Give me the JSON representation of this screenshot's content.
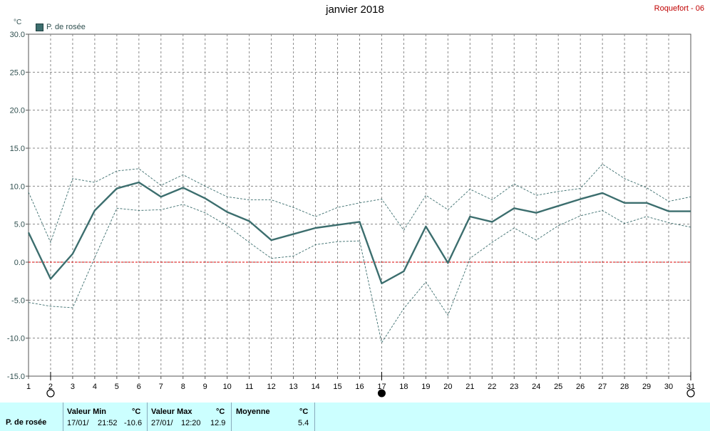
{
  "title": "janvier 2018",
  "station": "Roquefort - 06",
  "unit": "°C",
  "colors": {
    "series": "#3c6e6e",
    "envelope": "#3c6e6e",
    "zero_line": "#dd0000",
    "grid": "#888888",
    "stats_bg": "#ccffff"
  },
  "icons": [
    "full-moon-icon",
    "new-moon-icon"
  ],
  "chart_data": {
    "type": "line",
    "title": "janvier 2018",
    "ylabel": "°C",
    "ylim": [
      -15,
      30
    ],
    "yticks": [
      -15,
      -10,
      -5,
      0,
      5,
      10,
      15,
      20,
      25,
      30
    ],
    "ytick_labels": [
      "-15.0",
      "-10.0",
      "-5.0",
      "0.0",
      "5.0",
      "10.0",
      "15.0",
      "20.0",
      "25.0",
      "30.0"
    ],
    "x": [
      1,
      2,
      3,
      4,
      5,
      6,
      7,
      8,
      9,
      10,
      11,
      12,
      13,
      14,
      15,
      16,
      17,
      18,
      19,
      20,
      21,
      22,
      23,
      24,
      25,
      26,
      27,
      28,
      29,
      30,
      31
    ],
    "grid": true,
    "legend": "top-left",
    "series": [
      {
        "name": "P. de rosée",
        "role": "mean",
        "values": [
          3.9,
          -2.2,
          1.1,
          6.8,
          9.7,
          10.5,
          8.6,
          9.8,
          8.4,
          6.6,
          5.4,
          2.9,
          3.7,
          4.5,
          4.9,
          5.3,
          -2.8,
          -1.2,
          4.7,
          -0.1,
          6.0,
          5.3,
          7.1,
          6.5,
          7.4,
          8.3,
          9.1,
          7.8,
          7.8,
          6.7,
          6.7
        ]
      },
      {
        "role": "max",
        "values": [
          9.2,
          2.6,
          11.0,
          10.5,
          12.0,
          12.3,
          10.1,
          11.5,
          10.0,
          8.6,
          8.2,
          8.2,
          7.2,
          6.0,
          7.2,
          7.8,
          8.3,
          4.2,
          8.8,
          6.9,
          9.6,
          8.2,
          10.3,
          8.8,
          9.3,
          9.7,
          12.9,
          11.0,
          9.8,
          8.0,
          8.6
        ]
      },
      {
        "role": "min",
        "values": [
          -5.3,
          -5.8,
          -6.0,
          0.6,
          7.1,
          6.8,
          6.9,
          7.6,
          6.5,
          4.8,
          2.6,
          0.5,
          0.8,
          2.3,
          2.7,
          2.8,
          -10.6,
          -6.1,
          -2.6,
          -7.0,
          0.5,
          2.6,
          4.5,
          2.9,
          4.8,
          6.1,
          6.8,
          5.1,
          6.0,
          5.2,
          4.6
        ]
      }
    ],
    "moon_phases": [
      {
        "day": 2,
        "phase": "full"
      },
      {
        "day": 17,
        "phase": "new"
      },
      {
        "day": 31,
        "phase": "full"
      }
    ]
  },
  "stats": {
    "row_label": "P. de rosée",
    "min_header": "Valeur Min",
    "min_unit": "°C",
    "min_date": "17/01/",
    "min_time": "21:52",
    "min_value": "-10.6",
    "max_header": "Valeur Max",
    "max_unit": "°C",
    "max_date": "27/01/",
    "max_time": "12:20",
    "max_value": "12.9",
    "mean_header": "Moyenne",
    "mean_unit": "°C",
    "mean_value": "5.4"
  }
}
